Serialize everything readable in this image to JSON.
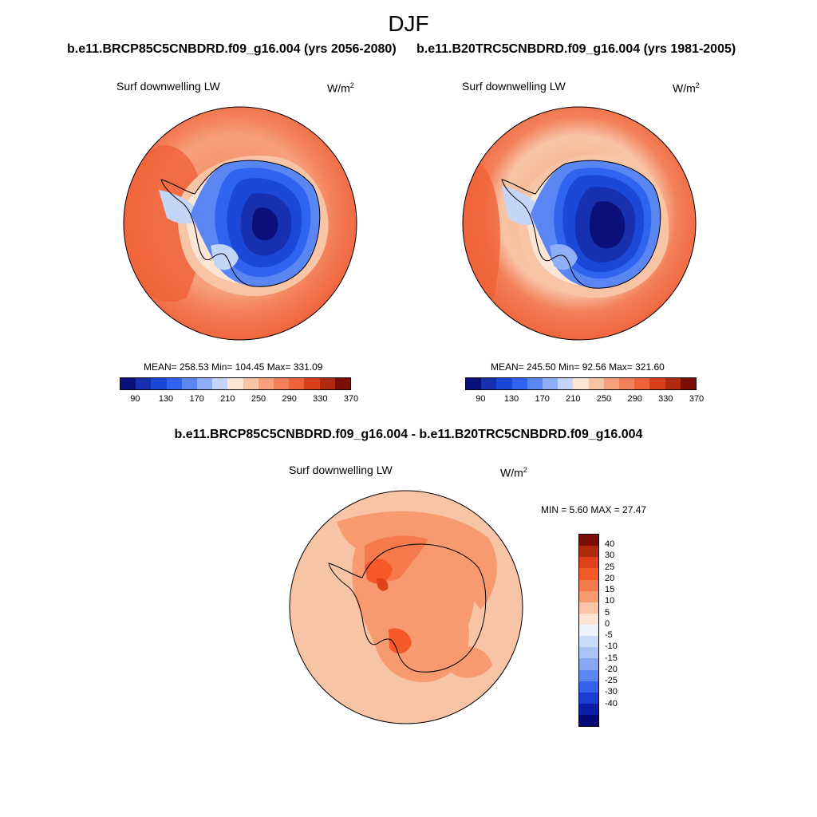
{
  "season": "DJF",
  "panels": [
    {
      "case": "b.e11.BRCP85C5CNBDRD.f09_g16.004 (yrs 2056-2080)",
      "label": "Surf downwelling LW",
      "units": "W/m",
      "units_exp": "2",
      "stats": "MEAN= 258.53  Min= 104.45  Max= 331.09"
    },
    {
      "case": "b.e11.B20TRC5CNBDRD.f09_g16.004 (yrs 1981-2005)",
      "label": "Surf downwelling LW",
      "units": "W/m",
      "units_exp": "2",
      "stats": "MEAN= 245.50  Min=  92.56  Max= 321.60"
    }
  ],
  "diff": {
    "title": "b.e11.BRCP85C5CNBDRD.f09_g16.004 - b.e11.B20TRC5CNBDRD.f09_g16.004",
    "label": "Surf downwelling LW",
    "units": "W/m",
    "units_exp": "2",
    "stats": "MIN =   5.60 MAX =  27.47"
  },
  "colorbar_abs": {
    "colors": [
      "#0a0f7a",
      "#1630b0",
      "#1c48d8",
      "#3064f0",
      "#5a86f4",
      "#8eaef6",
      "#c4d6f8",
      "#fbe6d6",
      "#f8c4a6",
      "#f6a07c",
      "#f3805a",
      "#f06238",
      "#d8401a",
      "#b02a10",
      "#7c0e06"
    ],
    "ticks": [
      "90",
      "130",
      "170",
      "210",
      "250",
      "290",
      "330",
      "370"
    ]
  },
  "colorbar_diff": {
    "colors": [
      "#7c0e06",
      "#b02a10",
      "#e0401a",
      "#f65828",
      "#f67a4c",
      "#f89a70",
      "#fac4a6",
      "#fde4d2",
      "#eef2fa",
      "#c8dbf8",
      "#a8c4f4",
      "#86a8f2",
      "#5c86f0",
      "#3462e8",
      "#1c3ed0",
      "#0c1ea8",
      "#060a78"
    ],
    "ticks": [
      "40",
      "30",
      "25",
      "20",
      "15",
      "10",
      "5",
      "0",
      "-5",
      "-10",
      "-15",
      "-20",
      "-25",
      "-30",
      "-40"
    ]
  }
}
